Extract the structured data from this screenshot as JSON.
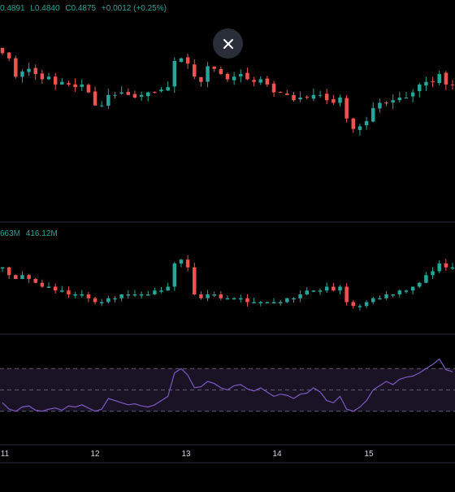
{
  "legend": {
    "open": "0.4891",
    "low": "L0.4840",
    "close": "C0.4875",
    "change": "+0.0012 (+0.25%)"
  },
  "volume_legend": {
    "value_a": "663M",
    "value_b": "416.12M"
  },
  "colors": {
    "up": "#26a69a",
    "down": "#ef5350",
    "rsi": "#7e57c2",
    "rsi_band": "#1a1326",
    "grid_line": "#2a2e39"
  },
  "icons": {
    "close": "close-icon"
  },
  "chart_data": [
    {
      "type": "candlestick",
      "x_ticks": [
        "11",
        "12",
        "13",
        "14",
        "15"
      ],
      "ylim": [
        0.45,
        0.52
      ],
      "closes": [
        0.509,
        0.507,
        0.5,
        0.502,
        0.503,
        0.501,
        0.499,
        0.5,
        0.497,
        0.498,
        0.497,
        0.496,
        0.497,
        0.494,
        0.489,
        0.489,
        0.493,
        0.493,
        0.494,
        0.493,
        0.492,
        0.493,
        0.494,
        0.494,
        0.495,
        0.496,
        0.506,
        0.507,
        0.505,
        0.5,
        0.498,
        0.504,
        0.503,
        0.501,
        0.499,
        0.5,
        0.501,
        0.499,
        0.498,
        0.499,
        0.497,
        0.494,
        0.494,
        0.493,
        0.491,
        0.492,
        0.492,
        0.493,
        0.493,
        0.491,
        0.49,
        0.492,
        0.484,
        0.48,
        0.481,
        0.483,
        0.488,
        0.49,
        0.49,
        0.491,
        0.492,
        0.492,
        0.494,
        0.497,
        0.498,
        0.498,
        0.501,
        0.497,
        0.497
      ]
    },
    {
      "type": "line",
      "series": [
        {
          "values": [
            0.497,
            0.495,
            0.494,
            0.495,
            0.494,
            0.493,
            0.492,
            0.492,
            0.491,
            0.491,
            0.49,
            0.49,
            0.49,
            0.489,
            0.488,
            0.488,
            0.489,
            0.489,
            0.49,
            0.49,
            0.49,
            0.49,
            0.49,
            0.491,
            0.491,
            0.492,
            0.498,
            0.499,
            0.497,
            0.49,
            0.489,
            0.49,
            0.49,
            0.489,
            0.489,
            0.489,
            0.489,
            0.488,
            0.488,
            0.488,
            0.488,
            0.488,
            0.488,
            0.489,
            0.489,
            0.49,
            0.491,
            0.491,
            0.491,
            0.492,
            0.491,
            0.492,
            0.488,
            0.487,
            0.487,
            0.488,
            0.489,
            0.489,
            0.49,
            0.49,
            0.491,
            0.491,
            0.492,
            0.493,
            0.495,
            0.496,
            0.498,
            0.497,
            0.497
          ]
        }
      ]
    },
    {
      "type": "line",
      "ylim": [
        0,
        100
      ],
      "bands": [
        70,
        50,
        30
      ],
      "values": [
        38,
        32,
        30,
        34,
        35,
        31,
        30,
        32,
        33,
        31,
        35,
        34,
        36,
        33,
        30,
        32,
        42,
        40,
        38,
        36,
        37,
        35,
        34,
        36,
        40,
        44,
        66,
        70,
        64,
        52,
        53,
        58,
        56,
        52,
        50,
        54,
        55,
        51,
        49,
        52,
        48,
        44,
        46,
        45,
        42,
        46,
        47,
        52,
        48,
        40,
        38,
        44,
        32,
        30,
        34,
        40,
        50,
        54,
        58,
        55,
        60,
        62,
        63,
        66,
        70,
        74,
        79,
        69,
        67
      ]
    }
  ]
}
